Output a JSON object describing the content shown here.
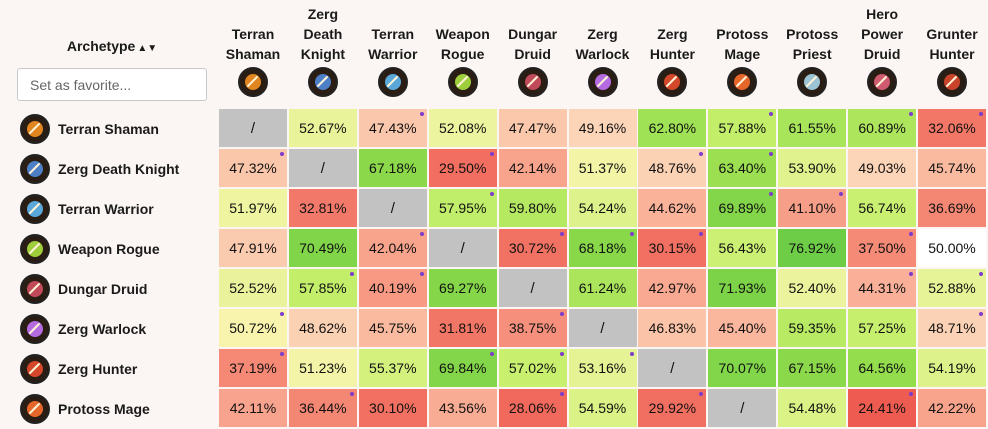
{
  "header": {
    "archetype_label": "Archetype",
    "sort_glyph": "▲▼"
  },
  "favorite": {
    "placeholder": "Set as favorite..."
  },
  "columns": [
    {
      "label": "Terran Shaman",
      "icon": "terran-shaman-icon",
      "color": "#e0851f"
    },
    {
      "label": "Zerg Death Knight",
      "icon": "zerg-death-knight-icon",
      "color": "#4d7fc6"
    },
    {
      "label": "Terran Warrior",
      "icon": "terran-warrior-icon",
      "color": "#5aa7d9"
    },
    {
      "label": "Weapon Rogue",
      "icon": "weapon-rogue-icon",
      "color": "#9fce3d"
    },
    {
      "label": "Dungar Druid",
      "icon": "dungar-druid-icon",
      "color": "#c04a59"
    },
    {
      "label": "Zerg Warlock",
      "icon": "zerg-warlock-icon",
      "color": "#b56be0"
    },
    {
      "label": "Zerg Hunter",
      "icon": "zerg-hunter-icon",
      "color": "#d4472a"
    },
    {
      "label": "Protoss Mage",
      "icon": "protoss-mage-icon",
      "color": "#e6662a"
    },
    {
      "label": "Protoss Priest",
      "icon": "protoss-priest-icon",
      "color": "#9cc4d4"
    },
    {
      "label": "Hero Power Druid",
      "icon": "hero-power-druid-icon",
      "color": "#d05a70"
    },
    {
      "label": "Grunter Hunter",
      "icon": "grunter-hunter-icon",
      "color": "#c9432a"
    }
  ],
  "rows": [
    {
      "label": "Terran Shaman",
      "icon": "terran-shaman-icon",
      "color": "#e0851f",
      "cells": [
        "/",
        "52.67%",
        "47.43%",
        "52.08%",
        "47.47%",
        "49.16%",
        "62.80%",
        "57.88%",
        "61.55%",
        "60.89%",
        "32.06%"
      ],
      "values": [
        null,
        52.67,
        47.43,
        52.08,
        47.47,
        49.16,
        62.8,
        57.88,
        61.55,
        60.89,
        32.06
      ],
      "dots": [
        false,
        false,
        true,
        false,
        false,
        false,
        false,
        true,
        false,
        true,
        true
      ]
    },
    {
      "label": "Zerg Death Knight",
      "icon": "zerg-death-knight-icon",
      "color": "#4d7fc6",
      "cells": [
        "47.32%",
        "/",
        "67.18%",
        "29.50%",
        "42.14%",
        "51.37%",
        "48.76%",
        "63.40%",
        "53.90%",
        "49.03%",
        "45.74%"
      ],
      "values": [
        47.32,
        null,
        67.18,
        29.5,
        42.14,
        51.37,
        48.76,
        63.4,
        53.9,
        49.03,
        45.74
      ],
      "dots": [
        true,
        false,
        false,
        true,
        false,
        false,
        true,
        true,
        false,
        false,
        false
      ]
    },
    {
      "label": "Terran Warrior",
      "icon": "terran-warrior-icon",
      "color": "#5aa7d9",
      "cells": [
        "51.97%",
        "32.81%",
        "/",
        "57.95%",
        "59.80%",
        "54.24%",
        "44.62%",
        "69.89%",
        "41.10%",
        "56.74%",
        "36.69%"
      ],
      "values": [
        51.97,
        32.81,
        null,
        57.95,
        59.8,
        54.24,
        44.62,
        69.89,
        41.1,
        56.74,
        36.69
      ],
      "dots": [
        false,
        false,
        false,
        true,
        false,
        false,
        false,
        true,
        true,
        false,
        false
      ]
    },
    {
      "label": "Weapon Rogue",
      "icon": "weapon-rogue-icon",
      "color": "#9fce3d",
      "cells": [
        "47.91%",
        "70.49%",
        "42.04%",
        "/",
        "30.72%",
        "68.18%",
        "30.15%",
        "56.43%",
        "76.92%",
        "37.50%",
        "50.00%"
      ],
      "values": [
        47.91,
        70.49,
        42.04,
        null,
        30.72,
        68.18,
        30.15,
        56.43,
        76.92,
        37.5,
        50.0
      ],
      "dots": [
        false,
        false,
        true,
        false,
        true,
        true,
        true,
        false,
        false,
        true,
        false
      ]
    },
    {
      "label": "Dungar Druid",
      "icon": "dungar-druid-icon",
      "color": "#c04a59",
      "cells": [
        "52.52%",
        "57.85%",
        "40.19%",
        "69.27%",
        "/",
        "61.24%",
        "42.97%",
        "71.93%",
        "52.40%",
        "44.31%",
        "52.88%"
      ],
      "values": [
        52.52,
        57.85,
        40.19,
        69.27,
        null,
        61.24,
        42.97,
        71.93,
        52.4,
        44.31,
        52.88
      ],
      "dots": [
        false,
        true,
        true,
        false,
        false,
        false,
        false,
        false,
        false,
        true,
        true
      ]
    },
    {
      "label": "Zerg Warlock",
      "icon": "zerg-warlock-icon",
      "color": "#b56be0",
      "cells": [
        "50.72%",
        "48.62%",
        "45.75%",
        "31.81%",
        "38.75%",
        "/",
        "46.83%",
        "45.40%",
        "59.35%",
        "57.25%",
        "48.71%"
      ],
      "values": [
        50.72,
        48.62,
        45.75,
        31.81,
        38.75,
        null,
        46.83,
        45.4,
        59.35,
        57.25,
        48.71
      ],
      "dots": [
        true,
        false,
        false,
        false,
        true,
        false,
        false,
        false,
        false,
        false,
        true
      ]
    },
    {
      "label": "Zerg Hunter",
      "icon": "zerg-hunter-icon",
      "color": "#d4472a",
      "cells": [
        "37.19%",
        "51.23%",
        "55.37%",
        "69.84%",
        "57.02%",
        "53.16%",
        "/",
        "70.07%",
        "67.15%",
        "64.56%",
        "54.19%"
      ],
      "values": [
        37.19,
        51.23,
        55.37,
        69.84,
        57.02,
        53.16,
        null,
        70.07,
        67.15,
        64.56,
        54.19
      ],
      "dots": [
        true,
        false,
        false,
        true,
        true,
        true,
        false,
        false,
        false,
        false,
        false
      ]
    },
    {
      "label": "Protoss Mage",
      "icon": "protoss-mage-icon",
      "color": "#e6662a",
      "cells": [
        "42.11%",
        "36.44%",
        "30.10%",
        "43.56%",
        "28.06%",
        "54.59%",
        "29.92%",
        "/",
        "54.48%",
        "24.41%",
        "42.22%"
      ],
      "values": [
        42.11,
        36.44,
        30.1,
        43.56,
        28.06,
        54.59,
        29.92,
        null,
        54.48,
        24.41,
        42.22
      ],
      "dots": [
        false,
        true,
        false,
        false,
        true,
        false,
        true,
        false,
        false,
        true,
        false
      ]
    }
  ],
  "colors": {
    "diagonal": "#c2c2c2",
    "dot": "#7d3cc9",
    "background": "#fbf6f3"
  }
}
